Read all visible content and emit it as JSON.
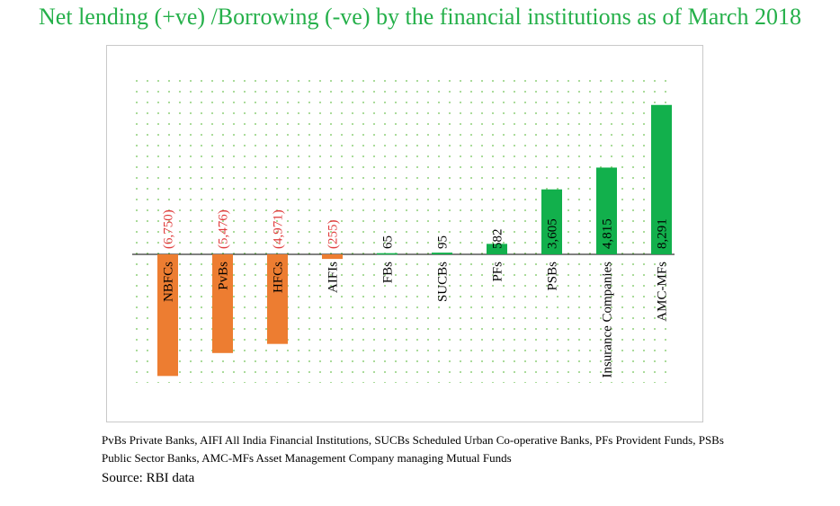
{
  "title": "Net lending (+ve) /Borrowing (-ve) by the financial institutions as of March 2018",
  "footnote": "PvBs Private Banks,  AIFI All India Financial Institutions, SUCBs Scheduled Urban Co-operative Banks, PFs Provident Funds, PSBs Public Sector Banks,  AMC-MFs Asset Management Company managing Mutual Funds",
  "source": "Source: RBI data",
  "colors": {
    "negative": "#ed7d31",
    "positive": "#12b04c",
    "negative_label": "#e03c3c",
    "title": "#25b04a",
    "grid_dot": "#8fd07a"
  },
  "chart_data": {
    "type": "bar",
    "categories": [
      "NBFCs",
      "PvBs",
      "HFCs",
      "AIFIs",
      "FBs",
      "SUCBs",
      "PFs",
      "PSBs",
      "Insurance Companies",
      "AMC-MFs"
    ],
    "values": [
      -6750,
      -5476,
      -4971,
      -255,
      65,
      95,
      582,
      3605,
      4815,
      8291
    ],
    "labels": [
      "(6,750)",
      "(5,476)",
      "(4,971)",
      "(255)",
      "65",
      "95",
      "582",
      "3,605",
      "4,815",
      "8,291"
    ],
    "ylim": [
      -7000,
      10000
    ],
    "grid": true,
    "legend": "none"
  }
}
